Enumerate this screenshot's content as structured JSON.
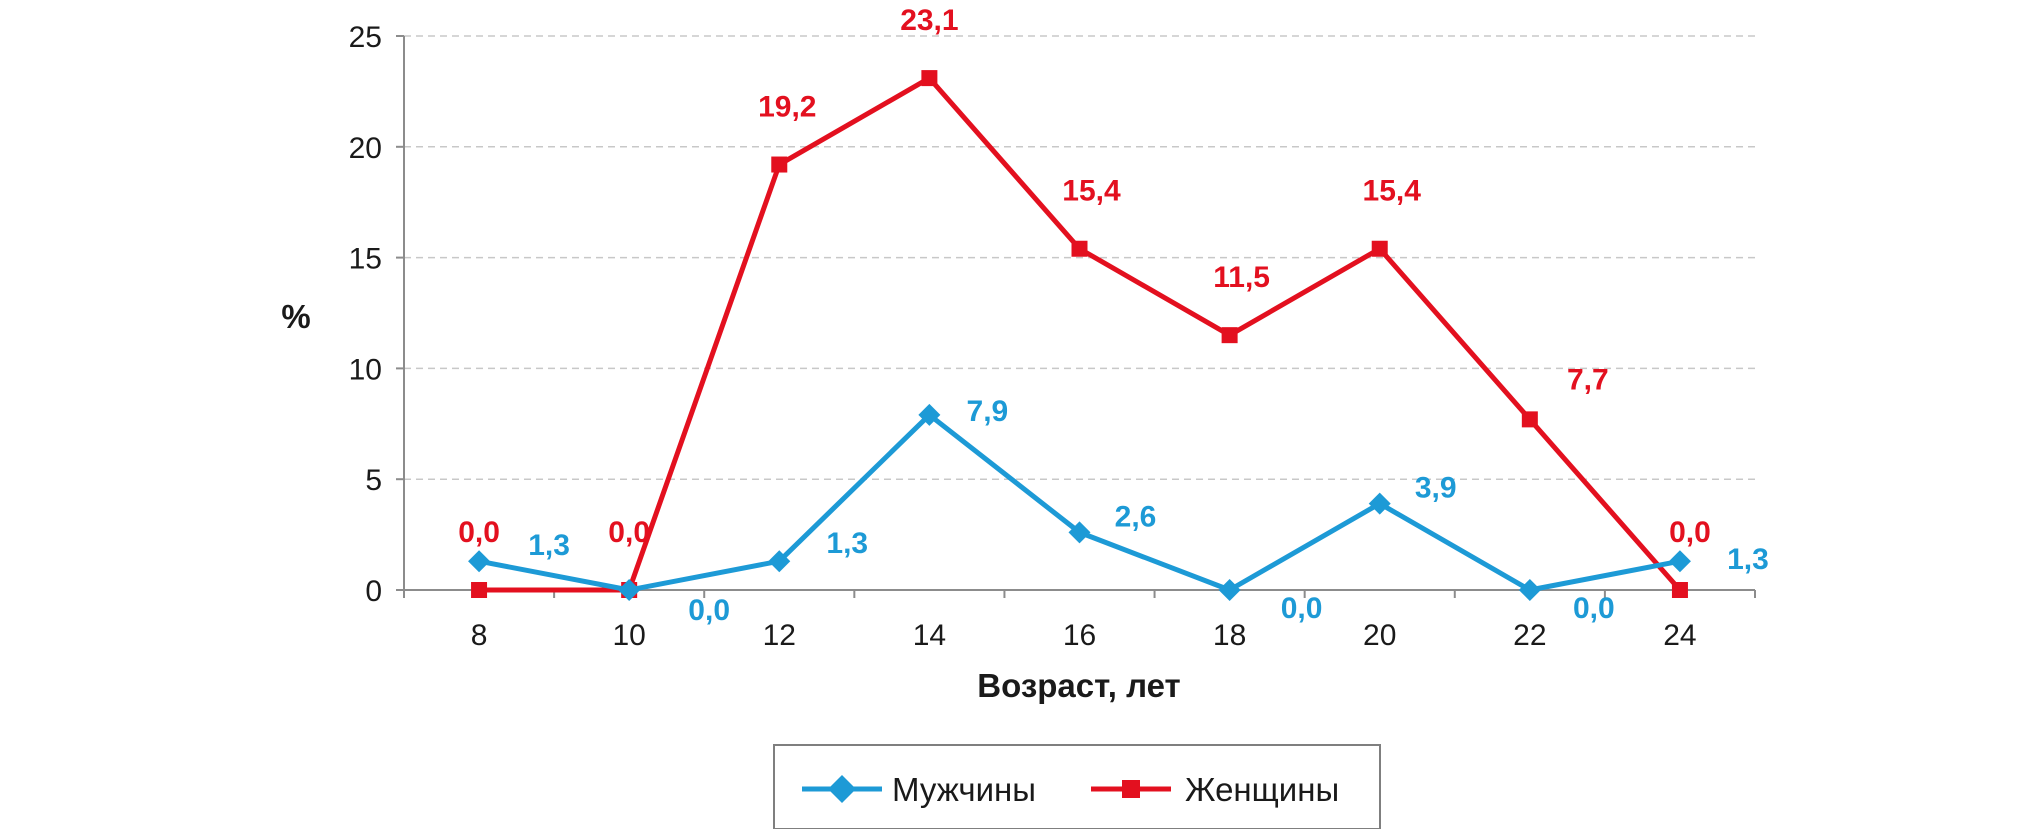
{
  "chart_data": {
    "type": "line",
    "title": "",
    "xlabel": "Возраст, лет",
    "ylabel": "%",
    "x": [
      8,
      10,
      12,
      14,
      16,
      18,
      20,
      22,
      24
    ],
    "x_tick_labels": [
      "8",
      "10",
      "12",
      "14",
      "16",
      "18",
      "20",
      "22",
      "24"
    ],
    "ylim": [
      0,
      25
    ],
    "y_tick_labels": [
      "0",
      "5",
      "10",
      "15",
      "20",
      "25"
    ],
    "grid": "horizontal dashed",
    "legend_position": "bottom",
    "series": [
      {
        "name": "Мужчины",
        "color": "#1d9ad6",
        "marker": "diamond",
        "values": [
          1.3,
          0.0,
          1.3,
          7.9,
          2.6,
          0.0,
          3.9,
          0.0,
          1.3
        ],
        "labels": [
          "1,3",
          "0,0",
          "1,3",
          "7,9",
          "2,6",
          "0,0",
          "3,9",
          "0,0",
          "1,3"
        ]
      },
      {
        "name": "Женщины",
        "color": "#e3101f",
        "marker": "square",
        "values": [
          0.0,
          0.0,
          19.2,
          23.1,
          15.4,
          11.5,
          15.4,
          7.7,
          0.0
        ],
        "labels": [
          "0,0",
          "0,0",
          "19,2",
          "23,1",
          "15,4",
          "11,5",
          "15,4",
          "7,7",
          "0,0"
        ]
      }
    ]
  }
}
